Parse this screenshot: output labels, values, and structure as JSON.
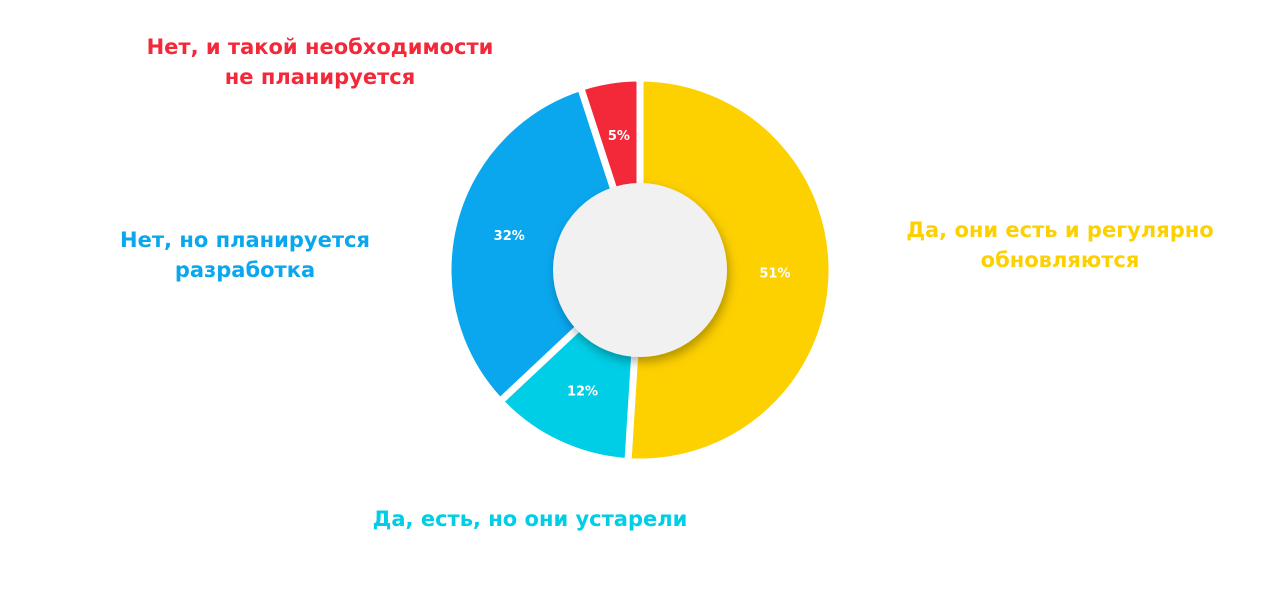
{
  "chart_data": {
    "type": "donut",
    "categories": [
      "Да, они есть и регулярно обновляются",
      "Да, есть, но они устарели",
      "Нет, но планируется разработка",
      "Нет, и такой необходимости не планируется"
    ],
    "values": [
      51,
      12,
      32,
      5
    ],
    "value_labels": [
      "51%",
      "12%",
      "32%",
      "5%"
    ],
    "colors": [
      "#FDD000",
      "#00CDE6",
      "#0AA7EE",
      "#F3293A"
    ]
  }
}
